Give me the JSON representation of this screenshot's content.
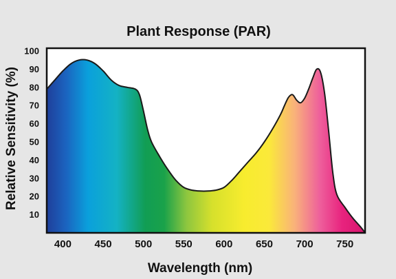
{
  "chart_data": {
    "type": "area",
    "title": "Plant Response (PAR)",
    "xlabel": "Wavelength (nm)",
    "ylabel": "Relative Sensitivity (%)",
    "xlim": [
      380,
      775
    ],
    "ylim": [
      0,
      100
    ],
    "x_ticks": [
      "400",
      "450",
      "500",
      "550",
      "600",
      "650",
      "700",
      "750"
    ],
    "x_tick_values": [
      400,
      450,
      500,
      550,
      600,
      650,
      700,
      750
    ],
    "y_ticks": [
      "10",
      "20",
      "30",
      "40",
      "50",
      "60",
      "70",
      "80",
      "90",
      "100"
    ],
    "y_tick_values": [
      10,
      20,
      30,
      40,
      50,
      60,
      70,
      80,
      90,
      100
    ],
    "grid": false,
    "fill": "visible-spectrum gradient (violet to red)",
    "series": [
      {
        "x": [
          380,
          390,
          400,
          410,
          420,
          430,
          440,
          450,
          460,
          470,
          480,
          490,
          495,
          500,
          505,
          510,
          520,
          530,
          540,
          550,
          560,
          570,
          580,
          590,
          600,
          610,
          620,
          630,
          640,
          650,
          660,
          670,
          675,
          680,
          685,
          690,
          695,
          700,
          705,
          710,
          715,
          720,
          725,
          730,
          735,
          740,
          750,
          760,
          770,
          775
        ],
        "y": [
          79,
          84,
          89,
          93,
          95,
          95,
          93,
          89,
          84,
          81,
          80,
          79,
          76,
          67,
          57,
          50,
          42,
          35,
          29,
          25,
          23.5,
          23,
          23,
          23.5,
          25,
          29,
          34,
          39,
          44,
          50,
          57,
          65,
          70,
          74.5,
          76,
          73,
          71.5,
          74,
          79,
          85,
          90,
          88,
          76,
          55,
          33,
          21,
          14,
          8,
          3,
          0
        ]
      }
    ]
  }
}
